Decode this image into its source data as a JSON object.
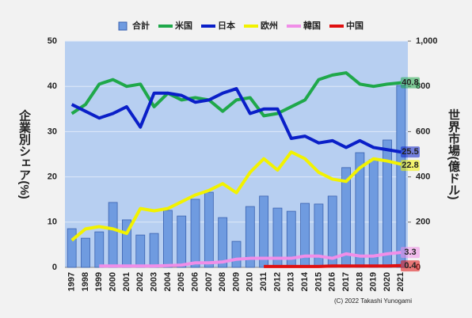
{
  "chart_data": {
    "type": "combo",
    "categories": [
      "1997",
      "1998",
      "1999",
      "2000",
      "2001",
      "2002",
      "2003",
      "2004",
      "2005",
      "2006",
      "2007",
      "2008",
      "2009",
      "2010",
      "2011",
      "2012",
      "2013",
      "2014",
      "2015",
      "2016",
      "2017",
      "2018",
      "2019",
      "2020",
      "2021"
    ],
    "ylabel": "企業別シェア(%)",
    "y2label": "世界市場(億ドル)",
    "ylim": [
      0,
      50
    ],
    "yticks": [
      0,
      10,
      20,
      30,
      40,
      50
    ],
    "y2lim": [
      0,
      1000
    ],
    "y2ticks": [
      0,
      200,
      400,
      600,
      800,
      {
        "value": 1000,
        "label": "1,000"
      }
    ],
    "grid": true,
    "legend": "top",
    "series": [
      {
        "name": "合計",
        "type": "bar",
        "axis": "y2",
        "color": "#6f9be0",
        "values": [
          171,
          129,
          157,
          287,
          210,
          143,
          150,
          252,
          227,
          301,
          332,
          220,
          115,
          269,
          315,
          262,
          248,
          283,
          280,
          315,
          441,
          507,
          476,
          563,
          804
        ]
      },
      {
        "name": "米国",
        "type": "line",
        "color": "#1fa84a",
        "values": [
          34,
          36,
          40.5,
          41.5,
          40,
          40.5,
          35.5,
          38.5,
          37,
          37.5,
          37,
          34.5,
          37,
          37.5,
          33.5,
          34,
          35.5,
          37,
          41.5,
          42.5,
          43,
          40.5,
          40,
          40.5,
          40.8
        ]
      },
      {
        "name": "日本",
        "type": "line",
        "color": "#0a1fc8",
        "values": [
          36,
          34.5,
          33,
          34,
          35.5,
          31,
          38.5,
          38.5,
          38,
          36.5,
          37,
          38.5,
          39.5,
          34,
          35,
          35,
          28.5,
          29,
          27.5,
          28,
          26.5,
          28,
          26.5,
          26,
          25.5
        ]
      },
      {
        "name": "欧州",
        "type": "line",
        "color": "#f2f200",
        "values": [
          6,
          8.5,
          9,
          8.5,
          7.5,
          13,
          12.5,
          13,
          14.5,
          16,
          17,
          18.5,
          16.5,
          21,
          24,
          21.5,
          25.5,
          24,
          21,
          19.5,
          19,
          22,
          24,
          23.5,
          22.8
        ]
      },
      {
        "name": "韓国",
        "type": "line",
        "color": "#f08ee8",
        "values": [
          null,
          null,
          0.3,
          0.3,
          0.3,
          0.3,
          0.3,
          0.4,
          0.5,
          1,
          1,
          1.2,
          1.8,
          2,
          2,
          2,
          2,
          2.5,
          2.5,
          2,
          3,
          2.5,
          2.5,
          3,
          3.3
        ]
      },
      {
        "name": "中国",
        "type": "line",
        "color": "#e01010",
        "values": [
          null,
          null,
          null,
          null,
          null,
          null,
          null,
          null,
          null,
          null,
          null,
          null,
          null,
          null,
          0.2,
          0.2,
          0.2,
          0.2,
          0.2,
          0.3,
          0.3,
          0.3,
          0.3,
          0.3,
          0.4
        ]
      }
    ],
    "end_labels": [
      1,
      2,
      3,
      4,
      5
    ],
    "credit": "(C) 2022 Takashi Yunogami"
  }
}
